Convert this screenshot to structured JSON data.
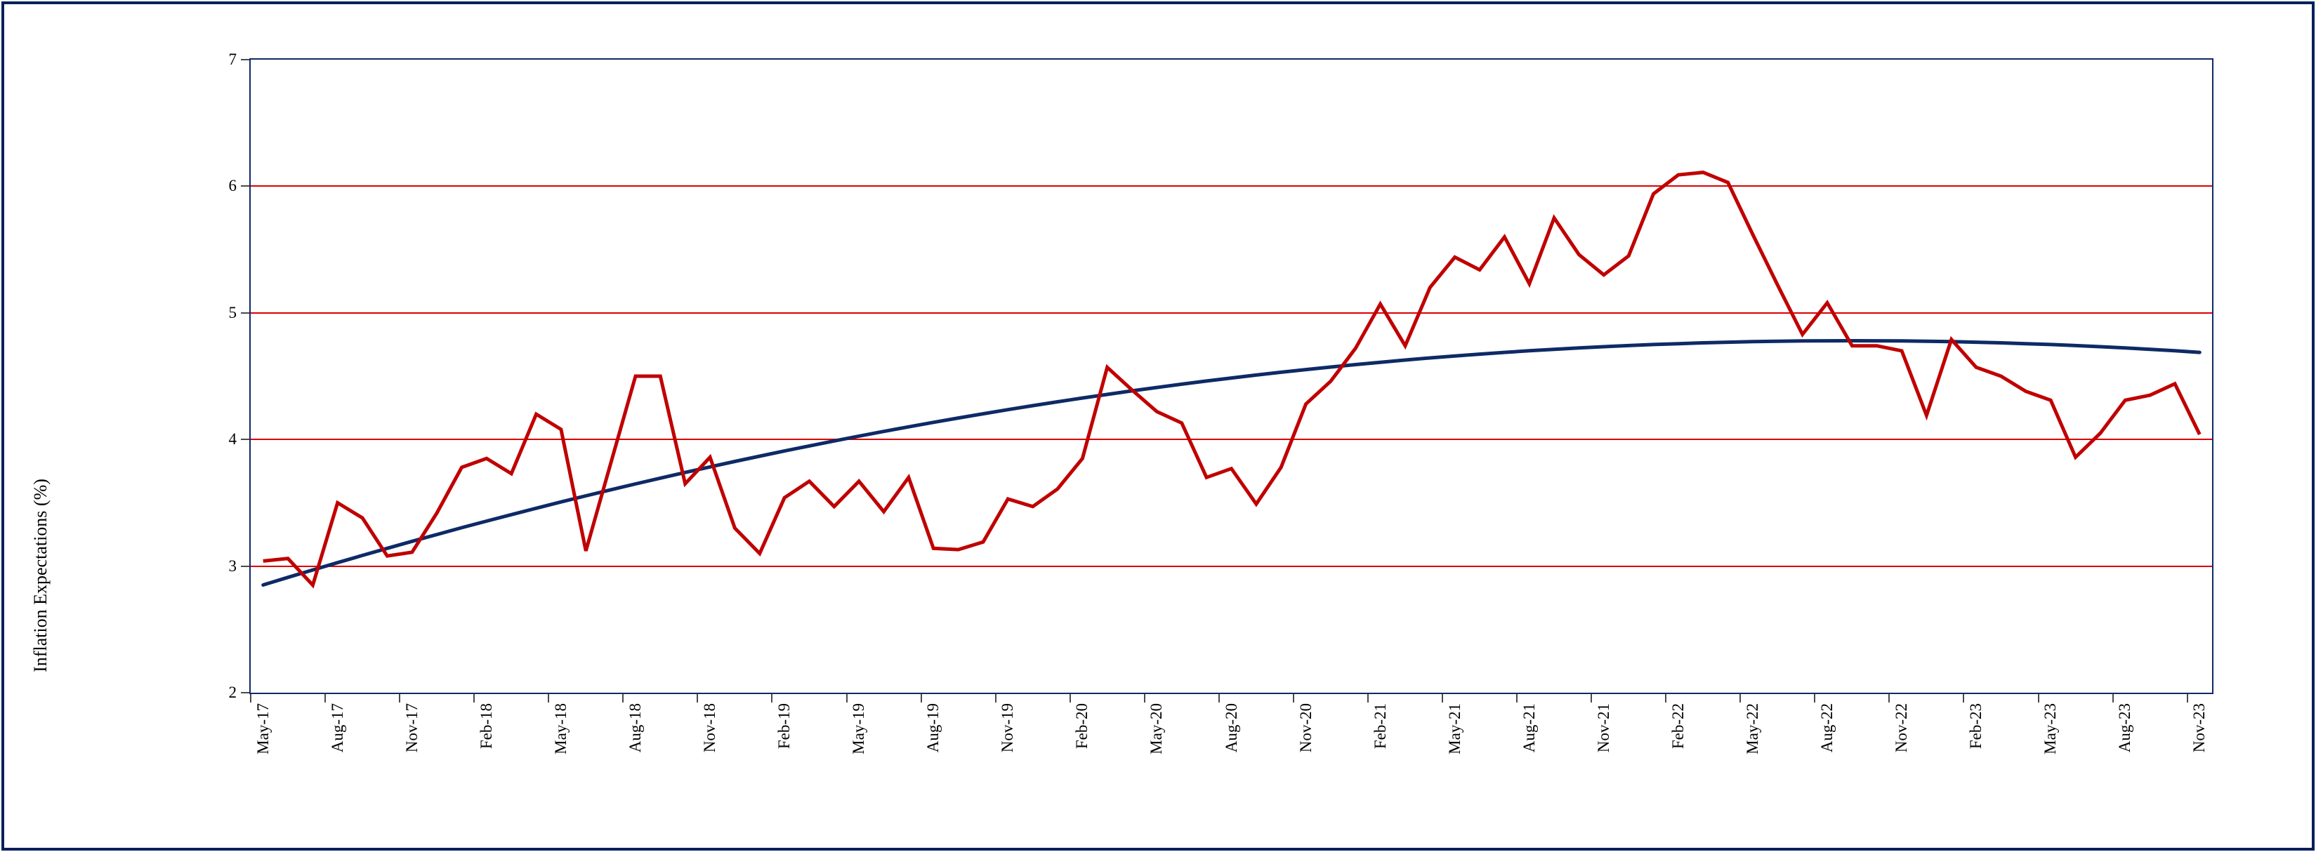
{
  "chart": {
    "y_axis_title": "Inflation Expectations (%)",
    "y_tick_labels": [
      "7",
      "6",
      "5",
      "4",
      "3",
      "2"
    ],
    "x_tick_labels": [
      "May-17",
      "Aug-17",
      "Nov-17",
      "Feb-18",
      "May-18",
      "Aug-18",
      "Nov-18",
      "Feb-19",
      "May-19",
      "Aug-19",
      "Nov-19",
      "Feb-20",
      "May-20",
      "Aug-20",
      "Nov-20",
      "Feb-21",
      "May-21",
      "Aug-21",
      "Nov-21",
      "Feb-22",
      "May-22",
      "Aug-22",
      "Nov-22",
      "Feb-23",
      "May-23",
      "Aug-23",
      "Nov-23"
    ]
  },
  "colors": {
    "frame_border": "#04215C",
    "plot_border": "#0E2A66",
    "gridline": "#DC0000",
    "series_red": "#C00000",
    "trend_navy": "#0E2A66",
    "tick": "#4a4a4a",
    "text": "#000000",
    "background": "#ffffff"
  },
  "chart_data": {
    "type": "line",
    "title": "",
    "xlabel": "",
    "ylabel": "Inflation Expectations (%)",
    "ylim": [
      2,
      7
    ],
    "y_ticks": [
      2,
      3,
      4,
      5,
      6,
      7
    ],
    "gridlines": {
      "values": [
        3,
        4,
        5,
        6
      ],
      "color": "#DC0000",
      "horizontal": true
    },
    "legend": "none",
    "x": [
      "May-17",
      "Jun-17",
      "Jul-17",
      "Aug-17",
      "Sep-17",
      "Oct-17",
      "Nov-17",
      "Dec-17",
      "Jan-18",
      "Feb-18",
      "Mar-18",
      "Apr-18",
      "May-18",
      "Jun-18",
      "Jul-18",
      "Aug-18",
      "Sep-18",
      "Oct-18",
      "Nov-18",
      "Dec-18",
      "Jan-19",
      "Feb-19",
      "Mar-19",
      "Apr-19",
      "May-19",
      "Jun-19",
      "Jul-19",
      "Aug-19",
      "Sep-19",
      "Oct-19",
      "Nov-19",
      "Dec-19",
      "Jan-20",
      "Feb-20",
      "Mar-20",
      "Apr-20",
      "May-20",
      "Jun-20",
      "Jul-20",
      "Aug-20",
      "Sep-20",
      "Oct-20",
      "Nov-20",
      "Dec-20",
      "Jan-21",
      "Feb-21",
      "Mar-21",
      "Apr-21",
      "May-21",
      "Jun-21",
      "Jul-21",
      "Aug-21",
      "Sep-21",
      "Oct-21",
      "Nov-21",
      "Dec-21",
      "Jan-22",
      "Feb-22",
      "Mar-22",
      "Apr-22",
      "May-22",
      "Jun-22",
      "Jul-22",
      "Aug-22",
      "Sep-22",
      "Oct-22",
      "Nov-22",
      "Dec-22",
      "Jan-23",
      "Feb-23",
      "Mar-23",
      "Apr-23",
      "May-23",
      "Jun-23",
      "Jul-23",
      "Aug-23",
      "Sep-23",
      "Oct-23",
      "Nov-23"
    ],
    "series": [
      {
        "name": "inflation-expectations",
        "color": "#C00000",
        "values": [
          3.04,
          3.06,
          2.85,
          3.5,
          3.38,
          3.08,
          3.11,
          3.42,
          3.78,
          3.85,
          3.73,
          4.2,
          4.08,
          3.12,
          3.81,
          4.5,
          4.5,
          3.65,
          3.86,
          3.3,
          3.1,
          3.54,
          3.67,
          3.47,
          3.67,
          3.43,
          3.7,
          3.14,
          3.13,
          3.19,
          3.53,
          3.47,
          3.61,
          3.85,
          4.57,
          4.39,
          4.22,
          4.13,
          3.7,
          3.77,
          3.49,
          3.78,
          4.28,
          4.46,
          4.72,
          5.07,
          4.74,
          5.2,
          5.44,
          5.34,
          5.6,
          5.23,
          5.75,
          5.46,
          5.3,
          5.45,
          5.94,
          6.09,
          6.11,
          6.03,
          5.62,
          5.22,
          4.83,
          5.08,
          4.74,
          4.74,
          4.7,
          4.19,
          4.79,
          4.57,
          4.5,
          4.38,
          4.31,
          3.86,
          4.05,
          4.31,
          4.35,
          4.44,
          4.04
        ]
      },
      {
        "name": "polynomial-trend",
        "color": "#0E2A66",
        "model": "quadratic",
        "peak_index": 64,
        "peak_value": 4.78,
        "curvature": -0.000471,
        "start_value": 2.85,
        "end_value": 4.69
      }
    ]
  }
}
